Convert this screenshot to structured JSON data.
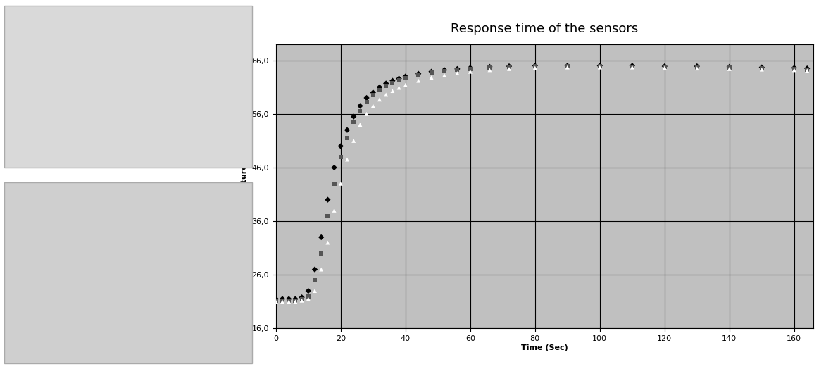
{
  "chart_data": {
    "type": "scatter",
    "title": "Response time of the sensors",
    "x_label": "Time (Sec)",
    "y_label": "Temperature °C",
    "x": [
      0,
      2,
      4,
      6,
      8,
      10,
      12,
      14,
      16,
      18,
      20,
      22,
      24,
      26,
      28,
      30,
      32,
      34,
      36,
      38,
      40,
      44,
      48,
      52,
      56,
      60,
      66,
      72,
      80,
      90,
      100,
      110,
      120,
      130,
      140,
      150,
      160,
      164
    ],
    "series": [
      {
        "color": "#000000",
        "marker": "diamond",
        "values": [
          21.5,
          21.5,
          21.5,
          21.5,
          21.8,
          23,
          27,
          33,
          40,
          46,
          50,
          53,
          55.5,
          57.5,
          59,
          60,
          61,
          61.7,
          62.2,
          62.6,
          63,
          63.5,
          63.9,
          64.2,
          64.4,
          64.6,
          64.8,
          64.9,
          65,
          65,
          65,
          65,
          64.9,
          64.9,
          64.8,
          64.7,
          64.6,
          64.5
        ]
      },
      {
        "color": "#555555",
        "marker": "square",
        "values": [
          21.2,
          21.2,
          21.2,
          21.2,
          21.5,
          22,
          25,
          30,
          37,
          43,
          48,
          51.5,
          54.5,
          56.5,
          58.2,
          59.5,
          60.5,
          61.2,
          61.8,
          62.3,
          62.7,
          63.3,
          63.7,
          64,
          64.2,
          64.4,
          64.6,
          64.8,
          64.9,
          64.9,
          64.9,
          64.8,
          64.8,
          64.7,
          64.6,
          64.5,
          64.4,
          64.3
        ]
      },
      {
        "color": "#ffffff",
        "marker": "triangle",
        "values": [
          21,
          21,
          21,
          21,
          21.2,
          21.5,
          23,
          27,
          32,
          38,
          43,
          47.5,
          51,
          54,
          56,
          57.5,
          58.7,
          59.6,
          60.3,
          60.9,
          61.4,
          62.2,
          62.8,
          63.2,
          63.6,
          63.9,
          64.2,
          64.4,
          64.6,
          64.7,
          64.7,
          64.7,
          64.6,
          64.5,
          64.4,
          64.3,
          64.2,
          64.1
        ]
      }
    ],
    "xlim": [
      0,
      166
    ],
    "ylim": [
      16,
      69
    ],
    "xticks": [
      0,
      20,
      40,
      60,
      80,
      100,
      120,
      140,
      160
    ],
    "yticks": [
      {
        "value": 16,
        "label": "16,0"
      },
      {
        "value": 26,
        "label": "26,0"
      },
      {
        "value": 36,
        "label": "36,0"
      },
      {
        "value": 46,
        "label": "46,0"
      },
      {
        "value": 56,
        "label": "56,0"
      },
      {
        "value": 66,
        "label": "66,0"
      }
    ],
    "grid": true
  }
}
